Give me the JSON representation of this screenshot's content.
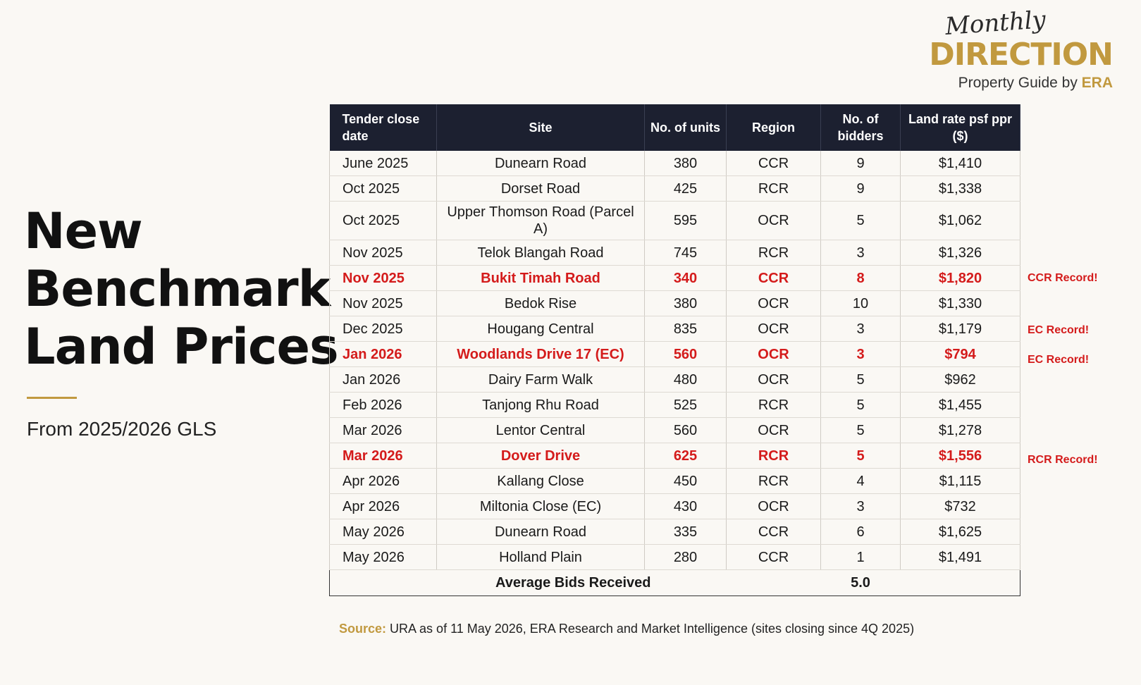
{
  "logo": {
    "script": "Monthly",
    "brand": "DIRECTION",
    "sub_prefix": "Property Guide by ",
    "sub_brand": "ERA"
  },
  "headline": [
    "New",
    "Benchmark",
    "Land Prices"
  ],
  "subhead": "From 2025/2026 GLS",
  "table": {
    "headers": [
      "Tender close date",
      "Site",
      "No. of units",
      "Region",
      "No. of bidders",
      "Land rate psf ppr ($)"
    ],
    "rows": [
      {
        "date": "June 2025",
        "site": "Dunearn Road",
        "units": "380",
        "region": "CCR",
        "bidders": "9",
        "rate": "$1,410",
        "highlight": false
      },
      {
        "date": "Oct 2025",
        "site": "Dorset Road",
        "units": "425",
        "region": "RCR",
        "bidders": "9",
        "rate": "$1,338",
        "highlight": false
      },
      {
        "date": "Oct 2025",
        "site": "Upper Thomson Road (Parcel A)",
        "units": "595",
        "region": "OCR",
        "bidders": "5",
        "rate": "$1,062",
        "highlight": false
      },
      {
        "date": "Nov 2025",
        "site": "Telok Blangah Road",
        "units": "745",
        "region": "RCR",
        "bidders": "3",
        "rate": "$1,326",
        "highlight": false
      },
      {
        "date": "Nov 2025",
        "site": "Bukit Timah Road",
        "units": "340",
        "region": "CCR",
        "bidders": "8",
        "rate": "$1,820",
        "highlight": true
      },
      {
        "date": "Nov 2025",
        "site": "Bedok Rise",
        "units": "380",
        "region": "OCR",
        "bidders": "10",
        "rate": "$1,330",
        "highlight": false
      },
      {
        "date": "Dec 2025",
        "site": "Hougang Central",
        "units": "835",
        "region": "OCR",
        "bidders": "3",
        "rate": "$1,179",
        "highlight": false
      },
      {
        "date": "Jan 2026",
        "site": "Woodlands Drive 17 (EC)",
        "units": "560",
        "region": "OCR",
        "bidders": "3",
        "rate": "$794",
        "highlight": true
      },
      {
        "date": "Jan 2026",
        "site": "Dairy Farm Walk",
        "units": "480",
        "region": "OCR",
        "bidders": "5",
        "rate": "$962",
        "highlight": false
      },
      {
        "date": "Feb 2026",
        "site": "Tanjong Rhu Road",
        "units": "525",
        "region": "RCR",
        "bidders": "5",
        "rate": "$1,455",
        "highlight": false
      },
      {
        "date": "Mar 2026",
        "site": "Lentor Central",
        "units": "560",
        "region": "OCR",
        "bidders": "5",
        "rate": "$1,278",
        "highlight": false
      },
      {
        "date": "Mar 2026",
        "site": "Dover Drive",
        "units": "625",
        "region": "RCR",
        "bidders": "5",
        "rate": "$1,556",
        "highlight": true
      },
      {
        "date": "Apr 2026",
        "site": "Kallang Close",
        "units": "450",
        "region": "RCR",
        "bidders": "4",
        "rate": "$1,115",
        "highlight": false
      },
      {
        "date": "Apr 2026",
        "site": "Miltonia Close (EC)",
        "units": "430",
        "region": "OCR",
        "bidders": "3",
        "rate": "$732",
        "highlight": false
      },
      {
        "date": "May 2026",
        "site": "Dunearn Road",
        "units": "335",
        "region": "CCR",
        "bidders": "6",
        "rate": "$1,625",
        "highlight": false
      },
      {
        "date": "May 2026",
        "site": "Holland Plain",
        "units": "280",
        "region": "CCR",
        "bidders": "1",
        "rate": "$1,491",
        "highlight": false
      }
    ],
    "average_label": "Average Bids Received",
    "average_value": "5.0"
  },
  "notes": [
    "CCR Record!",
    "EC Record!",
    "EC Record!",
    "RCR Record!"
  ],
  "source": {
    "label": "Source:",
    "text": " URA as of 11 May 2026, ERA Research and Market Intelligence (sites closing since 4Q 2025)"
  },
  "colors": {
    "background": "#faf8f4",
    "header": "#1c2030",
    "gold": "#c1993f",
    "record_red": "#d41b1b"
  }
}
